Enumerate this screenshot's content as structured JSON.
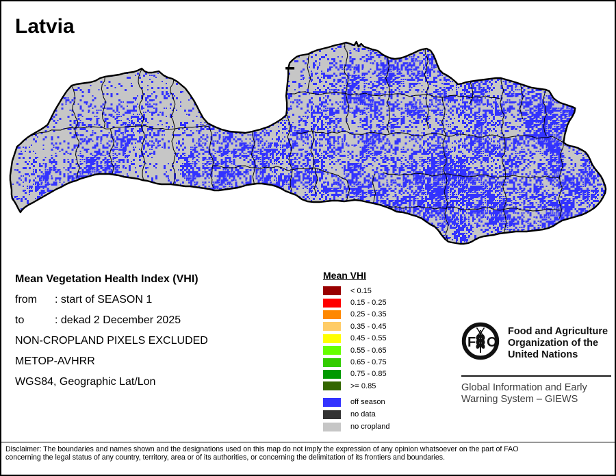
{
  "title": "Latvia",
  "info": {
    "heading": "Mean Vegetation Health Index (VHI)",
    "from_label": "from",
    "from_value": ": start of SEASON 1",
    "to_label": "to",
    "to_value": ": dekad 2 December 2025",
    "lines": [
      "NON-CROPLAND PIXELS EXCLUDED",
      "METOP-AVHRR",
      "WGS84, Geographic Lat/Lon"
    ]
  },
  "legend": {
    "title": "Mean VHI",
    "classes": [
      {
        "label": "< 0.15",
        "color": "#990000"
      },
      {
        "label": "0.15 - 0.25",
        "color": "#FF0000"
      },
      {
        "label": "0.25 - 0.35",
        "color": "#FF8800"
      },
      {
        "label": "0.35 - 0.45",
        "color": "#FFCC66"
      },
      {
        "label": "0.45 - 0.55",
        "color": "#FFFF00"
      },
      {
        "label": "0.55 - 0.65",
        "color": "#66FF00"
      },
      {
        "label": "0.65 - 0.75",
        "color": "#33CC00"
      },
      {
        "label": "0.75 - 0.85",
        "color": "#009900"
      },
      {
        "label": ">= 0.85",
        "color": "#336600"
      }
    ],
    "extra_classes": [
      {
        "label": "off season",
        "color": "#3333FF"
      },
      {
        "label": "no data",
        "color": "#333333"
      },
      {
        "label": "no cropland",
        "color": "#C6C6C6"
      }
    ]
  },
  "fao": {
    "logo_f": "F",
    "logo_a": "A",
    "logo_o": "O",
    "logo_motto": "FIAT·PANIS",
    "name_line1": "Food and Agriculture",
    "name_line2": "Organization of the",
    "name_line3": "United Nations",
    "giews_line1": "Global Information and Early",
    "giews_line2": "Warning System – GIEWS"
  },
  "disclaimer": {
    "line1": "Disclaimer: The boundaries and names shown and the designations used on this map do not imply the expression of any opinion whatsoever on the part of FAO",
    "line2": "concerning the legal status of any country, territory, area or of its authorities, or concerning the delimitation of its frontiers and boundaries."
  },
  "map_colors": {
    "land": "#C6C6C6",
    "off_season": "#3333FF",
    "boundary": "#000000",
    "water": "#FFFFFF"
  }
}
